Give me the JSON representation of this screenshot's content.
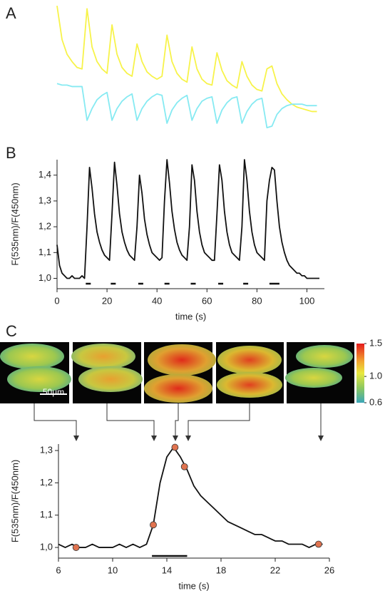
{
  "chart_data": [
    {
      "type": "line",
      "panel": "A",
      "x": [
        0,
        2,
        4,
        6,
        8,
        10,
        12,
        14,
        16,
        18,
        20,
        22,
        24,
        26,
        28,
        30,
        32,
        34,
        36,
        38,
        40,
        42,
        44,
        46,
        48,
        50,
        52,
        54,
        56,
        58,
        60,
        62,
        64,
        66,
        68,
        70,
        72,
        74,
        76,
        78,
        80,
        82,
        84,
        86,
        88,
        90,
        92,
        94,
        96,
        98,
        100,
        102,
        104
      ],
      "xlim": [
        0,
        105
      ],
      "ylim": [
        0,
        100
      ],
      "series": [
        {
          "color": "#f7f34a",
          "values": [
            98,
            75,
            65,
            60,
            56,
            55,
            96,
            70,
            60,
            55,
            52,
            85,
            65,
            56,
            52,
            50,
            72,
            60,
            53,
            50,
            48,
            50,
            78,
            60,
            52,
            48,
            46,
            70,
            55,
            48,
            45,
            44,
            66,
            54,
            47,
            44,
            42,
            60,
            50,
            44,
            41,
            40,
            55,
            57,
            45,
            38,
            34,
            31,
            29,
            28,
            27,
            26,
            26
          ]
        },
        {
          "color": "#86eaf2",
          "values": [
            45,
            44,
            44,
            43,
            43,
            43,
            20,
            28,
            34,
            37,
            39,
            20,
            28,
            33,
            36,
            38,
            20,
            28,
            33,
            36,
            38,
            37,
            18,
            27,
            32,
            35,
            37,
            20,
            28,
            33,
            35,
            36,
            18,
            27,
            32,
            35,
            36,
            18,
            26,
            31,
            34,
            35,
            15,
            16,
            24,
            28,
            30,
            31,
            31,
            31,
            30,
            30,
            30
          ]
        }
      ]
    },
    {
      "type": "line",
      "panel": "B",
      "x": [
        0,
        1,
        2,
        3,
        4,
        5,
        6,
        7,
        8,
        9,
        10,
        11,
        12,
        13,
        14,
        15,
        16,
        17,
        18,
        19,
        20,
        21,
        22,
        23,
        24,
        25,
        26,
        27,
        28,
        29,
        30,
        31,
        32,
        33,
        34,
        35,
        36,
        37,
        38,
        39,
        40,
        41,
        42,
        43,
        44,
        45,
        46,
        47,
        48,
        49,
        50,
        51,
        52,
        53,
        54,
        55,
        56,
        57,
        58,
        59,
        60,
        61,
        62,
        63,
        64,
        65,
        66,
        67,
        68,
        69,
        70,
        71,
        72,
        73,
        74,
        75,
        76,
        77,
        78,
        79,
        80,
        81,
        82,
        83,
        84,
        85,
        86,
        87,
        88,
        89,
        90,
        91,
        92,
        93,
        94,
        95,
        96,
        97,
        98,
        99,
        100,
        101,
        102,
        103,
        104,
        105
      ],
      "series": [
        {
          "color": "#111111",
          "values": [
            1.13,
            1.05,
            1.02,
            1.01,
            1.0,
            1.0,
            1.01,
            1.0,
            1.0,
            1.0,
            1.01,
            1.0,
            1.2,
            1.43,
            1.35,
            1.25,
            1.18,
            1.14,
            1.11,
            1.09,
            1.08,
            1.07,
            1.25,
            1.45,
            1.36,
            1.25,
            1.18,
            1.14,
            1.11,
            1.09,
            1.08,
            1.07,
            1.2,
            1.4,
            1.33,
            1.23,
            1.17,
            1.13,
            1.1,
            1.09,
            1.08,
            1.07,
            1.08,
            1.3,
            1.46,
            1.37,
            1.26,
            1.19,
            1.14,
            1.11,
            1.09,
            1.08,
            1.07,
            1.2,
            1.44,
            1.38,
            1.26,
            1.18,
            1.13,
            1.1,
            1.09,
            1.08,
            1.07,
            1.07,
            1.25,
            1.44,
            1.38,
            1.26,
            1.18,
            1.13,
            1.1,
            1.09,
            1.08,
            1.07,
            1.2,
            1.46,
            1.38,
            1.26,
            1.18,
            1.13,
            1.1,
            1.09,
            1.08,
            1.07,
            1.3,
            1.38,
            1.43,
            1.42,
            1.3,
            1.2,
            1.14,
            1.1,
            1.07,
            1.05,
            1.04,
            1.03,
            1.02,
            1.02,
            1.01,
            1.01,
            1.0,
            1.0,
            1.0,
            1.0,
            1.0,
            1.0
          ]
        }
      ],
      "stimuli": [
        [
          11.5,
          13.5
        ],
        [
          21.5,
          23.5
        ],
        [
          32.5,
          34.5
        ],
        [
          43,
          45
        ],
        [
          53.5,
          55.5
        ],
        [
          64.5,
          66.5
        ],
        [
          74.5,
          76.5
        ],
        [
          85,
          89
        ]
      ],
      "xlim": [
        0,
        107
      ],
      "ylim": [
        0.96,
        1.46
      ],
      "xticks": [
        0,
        20,
        40,
        60,
        80,
        100
      ],
      "yticks": [
        {
          "value": 1.0,
          "label": "1,0"
        },
        {
          "value": 1.1,
          "label": "1,1"
        },
        {
          "value": 1.2,
          "label": "1,2"
        },
        {
          "value": 1.3,
          "label": "1,3"
        },
        {
          "value": 1.4,
          "label": "1,4"
        }
      ],
      "xlabel": "time (s)",
      "ylabel": "F(535nm)/F(450nm)"
    },
    {
      "type": "line",
      "panel": "C",
      "x": [
        6,
        6.5,
        7,
        7.5,
        8,
        8.5,
        9,
        9.5,
        10,
        10.5,
        11,
        11.5,
        12,
        12.5,
        13,
        13.5,
        14,
        14.5,
        15,
        15.5,
        16,
        16.5,
        17,
        17.5,
        18,
        18.5,
        19,
        19.5,
        20,
        20.5,
        21,
        21.5,
        22,
        22.5,
        23,
        23.5,
        24,
        24.5,
        25,
        25.5
      ],
      "series": [
        {
          "color": "#111111",
          "values": [
            1.01,
            1.0,
            1.01,
            1.0,
            1.0,
            1.01,
            1.0,
            1.0,
            1.0,
            1.01,
            1.0,
            1.01,
            1.0,
            1.01,
            1.07,
            1.2,
            1.28,
            1.31,
            1.28,
            1.24,
            1.19,
            1.16,
            1.14,
            1.12,
            1.1,
            1.08,
            1.07,
            1.06,
            1.05,
            1.04,
            1.04,
            1.03,
            1.02,
            1.02,
            1.01,
            1.01,
            1.01,
            1.0,
            1.01,
            1.01
          ]
        }
      ],
      "markers": {
        "color": "#e0734f",
        "x": [
          7.3,
          13,
          14.6,
          15.3,
          25.2
        ],
        "values": [
          1.0,
          1.07,
          1.31,
          1.25,
          1.01
        ]
      },
      "stimuli": [
        [
          12.9,
          15.5
        ]
      ],
      "xlim": [
        6,
        26
      ],
      "ylim": [
        0.967,
        1.32
      ],
      "xticks": [
        6,
        10,
        14,
        18,
        22,
        26
      ],
      "yticks": [
        {
          "value": 1.0,
          "label": "1,0"
        },
        {
          "value": 1.1,
          "label": "1,1"
        },
        {
          "value": 1.2,
          "label": "1,2"
        },
        {
          "value": 1.3,
          "label": "1,3"
        }
      ],
      "xlabel": "time (s)",
      "ylabel": "F(535nm)/F(450nm)"
    }
  ],
  "images": {
    "scale_bar_label": "50µm",
    "colorbar": {
      "lim": [
        0.6,
        1.5
      ],
      "ticks": [
        1.5,
        {
          "value": 1.0,
          "label": "1.0"
        },
        0.6
      ]
    }
  }
}
